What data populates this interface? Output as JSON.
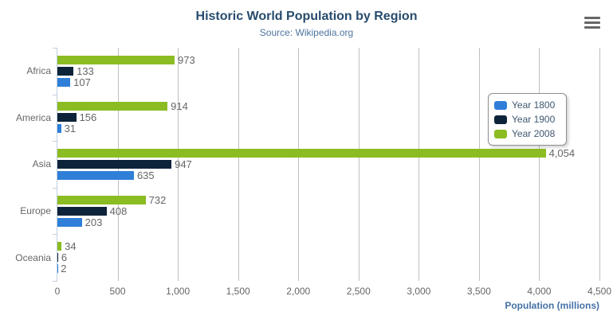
{
  "chart_data": {
    "type": "bar",
    "title": "Historic World Population by Region",
    "subtitle": "Source: Wikipedia.org",
    "xlabel": "Population (millions)",
    "categories": [
      "Africa",
      "America",
      "Asia",
      "Europe",
      "Oceania"
    ],
    "series": [
      {
        "name": "Year 1800",
        "color": "#2f7ed8",
        "values": [
          107,
          31,
          635,
          203,
          2
        ],
        "labels": [
          "107",
          "31",
          "635",
          "203",
          "2"
        ]
      },
      {
        "name": "Year 1900",
        "color": "#0d233a",
        "values": [
          133,
          156,
          947,
          408,
          6
        ],
        "labels": [
          "133",
          "156",
          "947",
          "408",
          "6"
        ]
      },
      {
        "name": "Year 2008",
        "color": "#8bbc21",
        "values": [
          973,
          914,
          4054,
          732,
          34
        ],
        "labels": [
          "973",
          "914",
          "4,054",
          "732",
          "34"
        ]
      }
    ],
    "row_series_order": [
      2,
      1,
      0
    ],
    "value_axis": {
      "min": 0,
      "max": 4500,
      "tick_interval": 500,
      "tick_labels": [
        "0",
        "500",
        "1,000",
        "1,500",
        "2,000",
        "2,500",
        "3,000",
        "3,500",
        "4,000",
        "4,500"
      ]
    },
    "legend_position": "right-inside",
    "grid": "vertical"
  },
  "palette": {
    "background": "#ffffff",
    "grid": "#c0c0c0",
    "axis_line": "#c0d0e0",
    "tick_label": "#666666",
    "data_label": "#666666",
    "title": "#274b6d",
    "subtitle": "#4d759e",
    "axis_title": "#4572a7",
    "legend_text": "#3e576f"
  },
  "export_menu": {
    "icon": "hamburger-icon"
  }
}
